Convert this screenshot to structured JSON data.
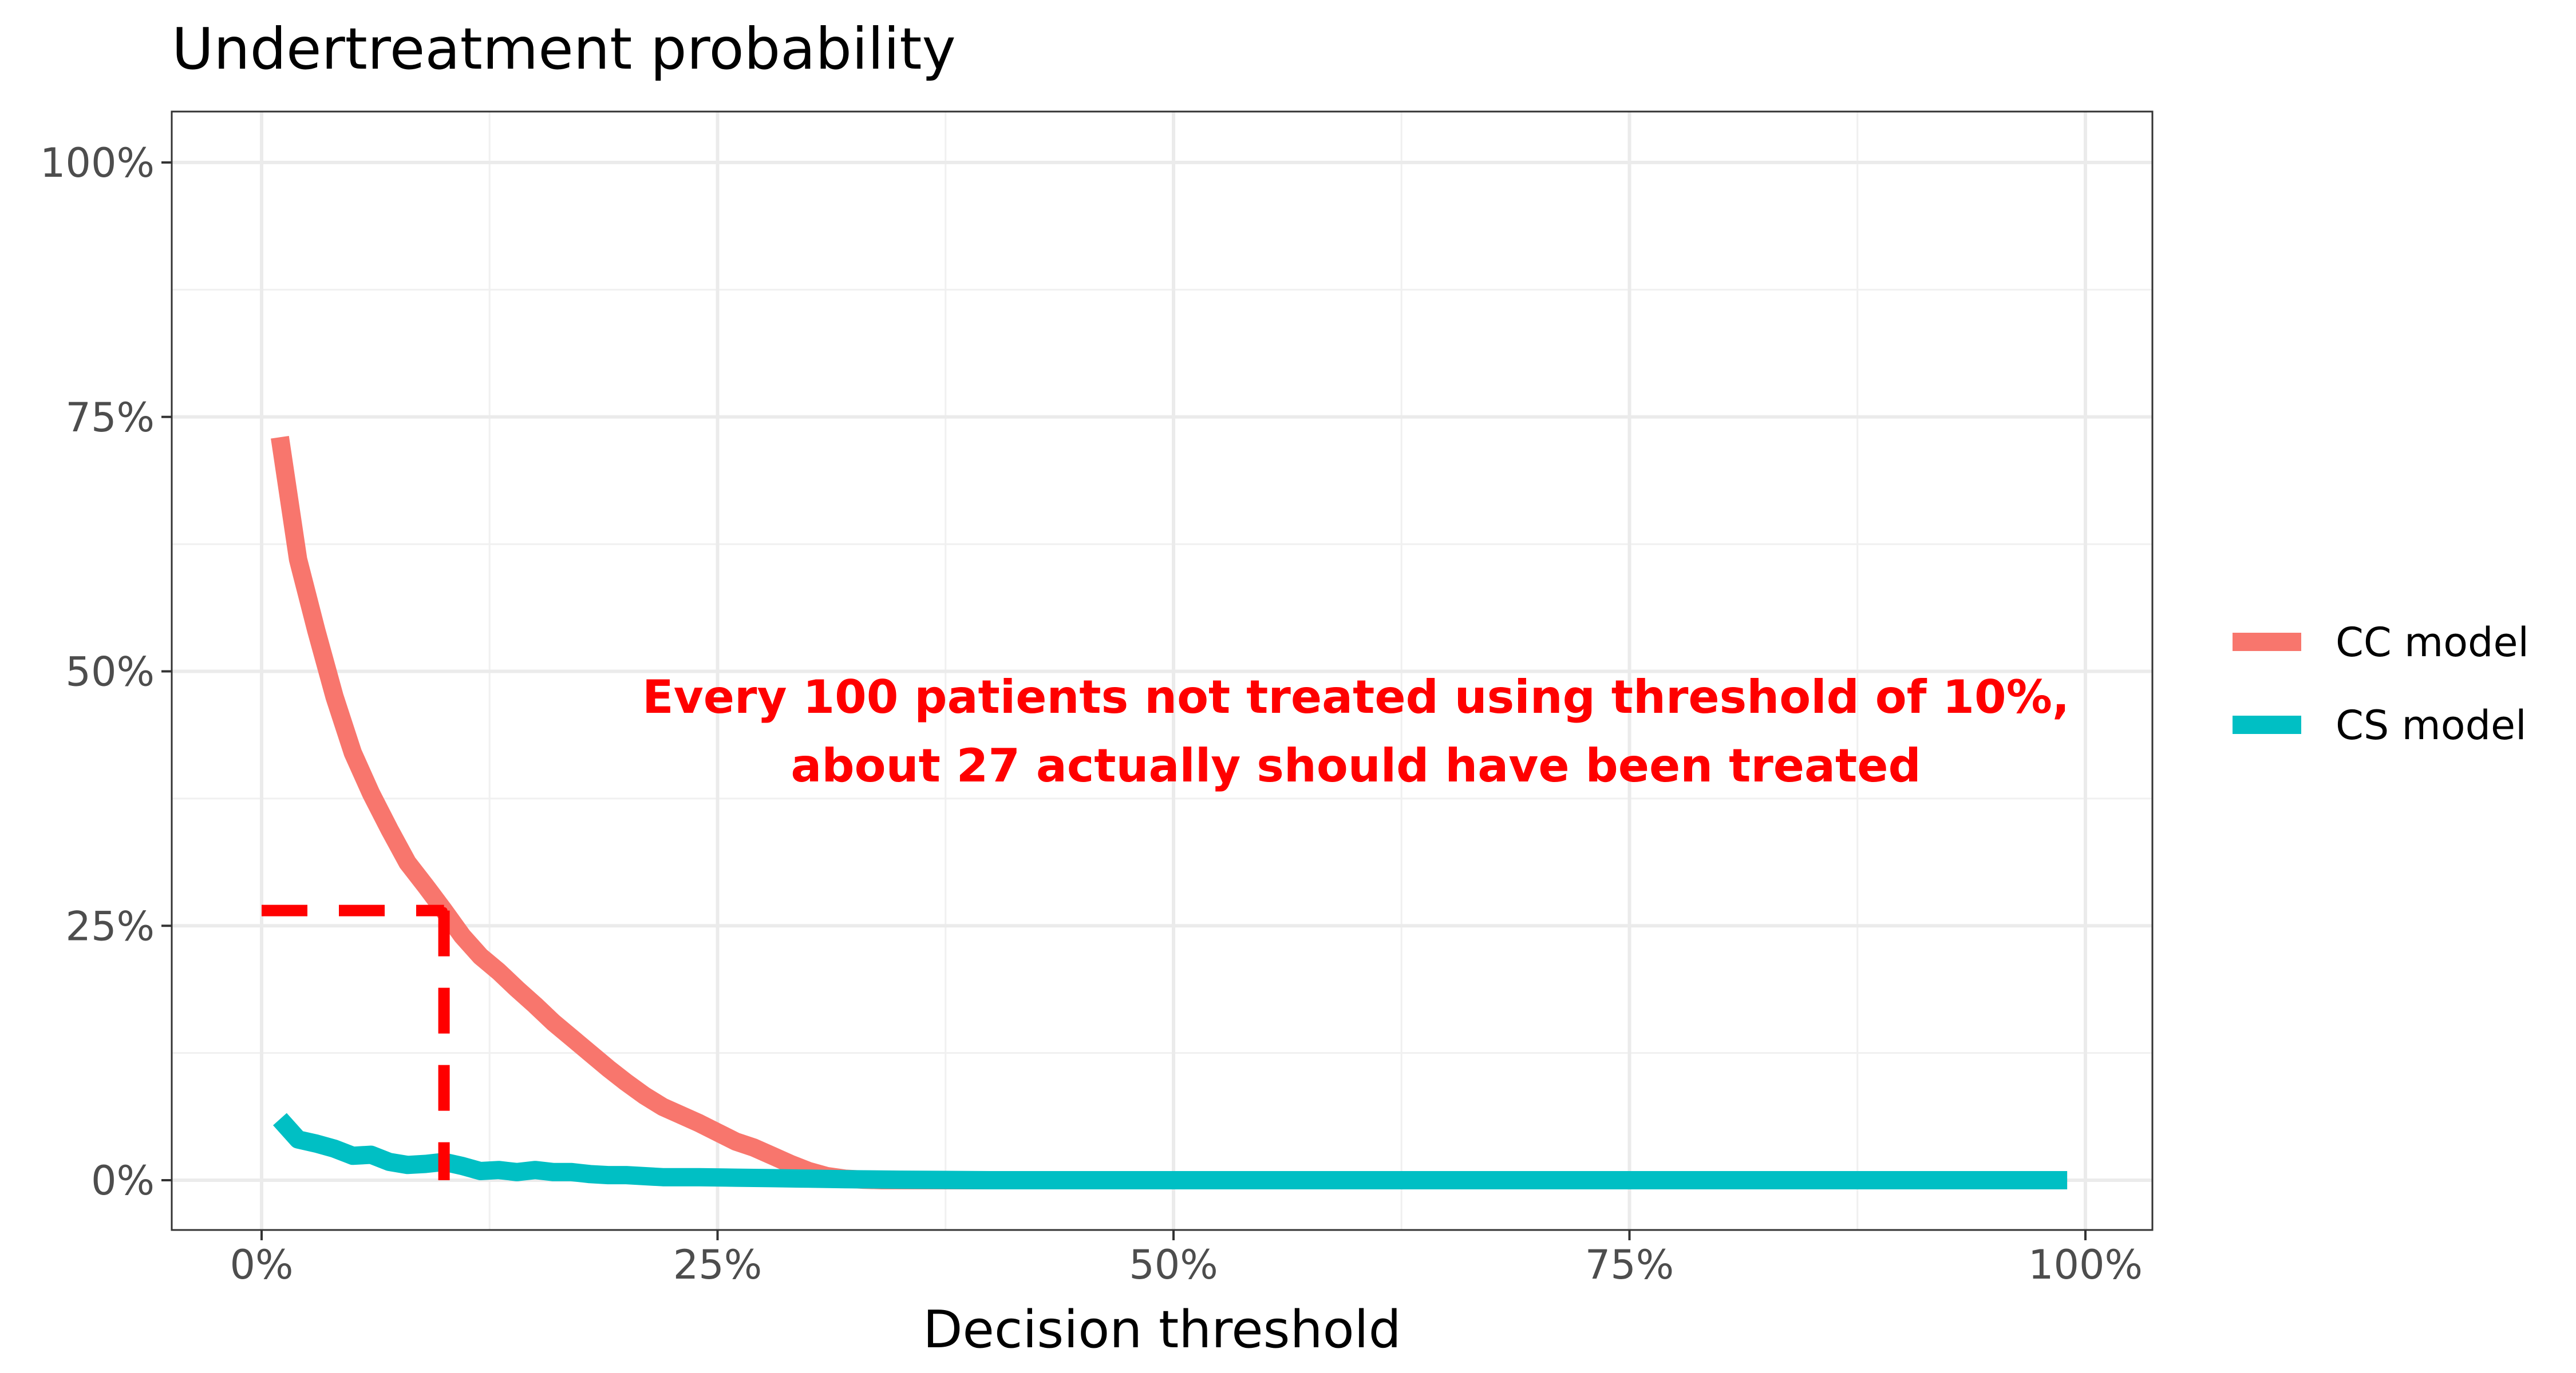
{
  "chart_data": {
    "type": "line",
    "title": "Undertreatment probability",
    "xlabel": "Decision threshold",
    "ylabel": "",
    "xlim": [
      0,
      100
    ],
    "ylim": [
      0,
      100
    ],
    "x_ticks": [
      "0%",
      "25%",
      "50%",
      "75%",
      "100%"
    ],
    "y_ticks": [
      "0%",
      "25%",
      "50%",
      "75%",
      "100%"
    ],
    "grid": true,
    "legend_position": "right",
    "series": [
      {
        "name": "CC model",
        "color": "#F8766D",
        "x": [
          1,
          2,
          3,
          4,
          5,
          6,
          7,
          8,
          9,
          10,
          11,
          12,
          13,
          14,
          15,
          16,
          17,
          18,
          19,
          20,
          21,
          22,
          23,
          24,
          25,
          26,
          27,
          28,
          29,
          30,
          31,
          32,
          33,
          34,
          35,
          36,
          37,
          38,
          39,
          40,
          45,
          50,
          55,
          60,
          65,
          70,
          75,
          80,
          85,
          90,
          95,
          99
        ],
        "values": [
          73,
          61,
          54,
          47.5,
          42,
          38,
          34.5,
          31.2,
          28.9,
          26.5,
          24,
          22,
          20.5,
          18.8,
          17.2,
          15.5,
          14,
          12.5,
          11,
          9.6,
          8.3,
          7.2,
          6.4,
          5.6,
          4.7,
          3.8,
          3.2,
          2.4,
          1.6,
          0.9,
          0.4,
          0.15,
          0.05,
          0,
          0,
          0,
          0,
          0,
          0,
          0,
          0,
          0,
          0,
          0,
          0,
          0,
          0,
          0,
          0,
          0,
          0,
          0
        ]
      },
      {
        "name": "CS model",
        "color": "#00BFC4",
        "x": [
          1,
          2,
          3,
          4,
          5,
          6,
          7,
          8,
          9,
          10,
          11,
          12,
          13,
          14,
          15,
          16,
          17,
          18,
          19,
          20,
          22,
          24,
          26,
          28,
          30,
          32,
          35,
          40,
          45,
          50,
          55,
          60,
          65,
          70,
          75,
          80,
          85,
          90,
          95,
          99
        ],
        "values": [
          6,
          4,
          3.6,
          3.1,
          2.4,
          2.5,
          1.8,
          1.5,
          1.6,
          1.8,
          1.4,
          0.9,
          1,
          0.8,
          1,
          0.8,
          0.8,
          0.6,
          0.5,
          0.5,
          0.3,
          0.3,
          0.25,
          0.2,
          0.15,
          0.1,
          0.05,
          0,
          0,
          0,
          0,
          0,
          0,
          0,
          0,
          0,
          0,
          0,
          0,
          0
        ]
      }
    ],
    "reference": {
      "x": 10,
      "y": 26.5,
      "color": "#FF0000"
    },
    "annotation": {
      "line1": "Every 100 patients not treated using threshold of 10%,",
      "line2": "about 27 actually should have been treated",
      "color": "#FF0000",
      "x": 60,
      "y": 47.5
    }
  }
}
